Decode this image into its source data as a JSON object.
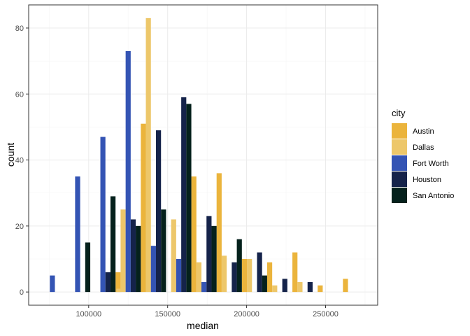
{
  "chart_data": {
    "type": "bar",
    "xlabel": "median",
    "ylabel": "count",
    "xlim": [
      62000,
      283000
    ],
    "ylim": [
      -4,
      87
    ],
    "x_ticks": [
      100000,
      150000,
      200000,
      250000
    ],
    "x_tick_labels": [
      "100000",
      "150000",
      "200000",
      "250000"
    ],
    "y_ticks": [
      0,
      20,
      40,
      60,
      80
    ],
    "y_tick_labels": [
      "0",
      "20",
      "40",
      "60",
      "80"
    ],
    "grid": true,
    "legend": {
      "title": "city",
      "position": "right"
    },
    "bin_centers": [
      77000,
      93000,
      109000,
      125000,
      141000,
      157000,
      173000,
      189000,
      205000,
      221000,
      237000,
      253000,
      269000
    ],
    "bin_width": 16000,
    "series": [
      {
        "name": "Austin",
        "color": "#EBB43C",
        "values": [
          0,
          0,
          0,
          6,
          51,
          0,
          35,
          36,
          10,
          9,
          12,
          2,
          4
        ]
      },
      {
        "name": "Dallas",
        "color": "#EDC76A",
        "values": [
          0,
          0,
          0,
          25,
          83,
          22,
          9,
          11,
          10,
          2,
          3,
          0,
          0
        ]
      },
      {
        "name": "Fort Worth",
        "color": "#3454B4",
        "values": [
          5,
          35,
          47,
          73,
          14,
          10,
          3,
          0,
          0,
          0,
          0,
          0,
          0
        ]
      },
      {
        "name": "Houston",
        "color": "#15234A",
        "values": [
          0,
          0,
          6,
          22,
          49,
          59,
          23,
          9,
          12,
          4,
          3,
          0,
          0
        ]
      },
      {
        "name": "San Antonio",
        "color": "#05211C",
        "values": [
          0,
          15,
          29,
          20,
          25,
          57,
          20,
          16,
          5,
          0,
          0,
          0,
          0
        ]
      }
    ],
    "extra_bars": [
      {
        "series": "Dallas",
        "x": 117500,
        "value": 1
      }
    ]
  }
}
